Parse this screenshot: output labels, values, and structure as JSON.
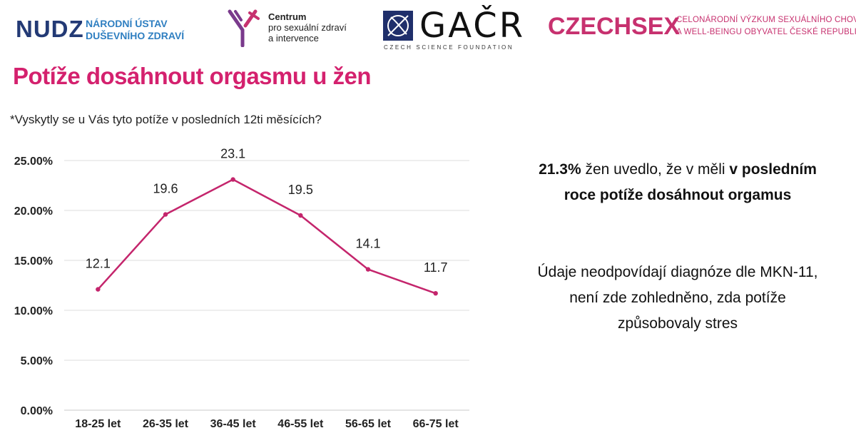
{
  "logos": {
    "nudz": {
      "mark": "NUDZ",
      "line1": "NÁRODNÍ ÚSTAV",
      "line2": "DUŠEVNÍHO ZDRAVÍ"
    },
    "centrum": {
      "line1": "Centrum",
      "line2": "pro sexuální zdraví",
      "line3": "a intervence"
    },
    "gacr": {
      "word": "GAČR",
      "sub": "CZECH SCIENCE FOUNDATION"
    },
    "czechsex": {
      "word": "CZECHSEX",
      "line1": "CELONÁRODNÍ VÝZKUM SEXUÁLNÍHO CHOVÁNÍ",
      "line2": "A WELL-BEINGU OBYVATEL ČESKÉ REPUBLIKY"
    }
  },
  "title": "Potíže dosáhnout orgasmu u žen",
  "subtitle": "*Vyskytly se u Vás tyto potíže v posledních 12ti měsících?",
  "colors": {
    "accent": "#d4216e",
    "line": "#c4256c",
    "brand_blue": "#233a75",
    "brand_pink": "#c7316f"
  },
  "chart_data": {
    "type": "line",
    "categories": [
      "18-25 let",
      "26-35 let",
      "36-45 let",
      "46-55 let",
      "56-65 let",
      "66-75 let"
    ],
    "series": [
      {
        "values": [
          12.1,
          19.6,
          23.1,
          19.5,
          14.1,
          11.7
        ]
      }
    ],
    "data_labels": [
      "12.1",
      "19.6",
      "23.1",
      "19.5",
      "14.1",
      "11.7"
    ],
    "ylim": [
      0,
      25
    ],
    "yticks": [
      0,
      5,
      10,
      15,
      20,
      25
    ],
    "ytick_labels": [
      "0.00%",
      "5.00%",
      "10.00%",
      "15.00%",
      "20.00%",
      "25.00%"
    ],
    "grid": true,
    "legend": "none"
  },
  "info": {
    "p1_value": "21.3%",
    "p1_text": " žen uvedlo, že v měli ",
    "p1_bold": "v posledním roce potíže dosáhnout orgamus",
    "p2": "Údaje neodpovídají diagnóze dle MKN-11, není zde zohledněno, zda potíže způsobovaly stres"
  }
}
